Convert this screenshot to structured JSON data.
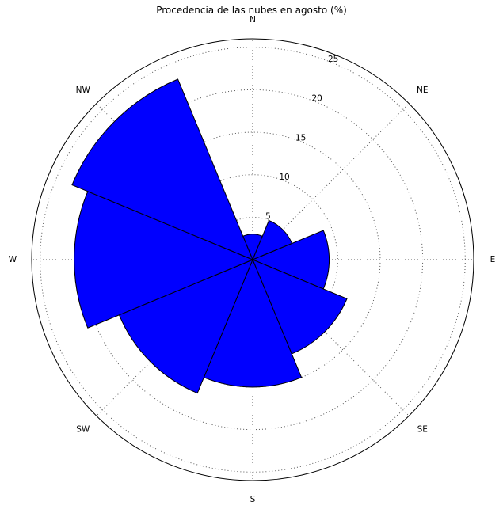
{
  "chart_data": {
    "type": "polar-bar",
    "title": "Procedencia de las nubes en agosto (%)",
    "directions": [
      "N",
      "NE",
      "E",
      "SE",
      "S",
      "SW",
      "W",
      "NW"
    ],
    "values": [
      3,
      5,
      9,
      12,
      15,
      17,
      21,
      23
    ],
    "r_ticks": [
      5,
      10,
      15,
      20,
      25
    ],
    "r_max": 26,
    "grid": true,
    "bar_color": "#0000ff",
    "edge_color": "#000000"
  }
}
